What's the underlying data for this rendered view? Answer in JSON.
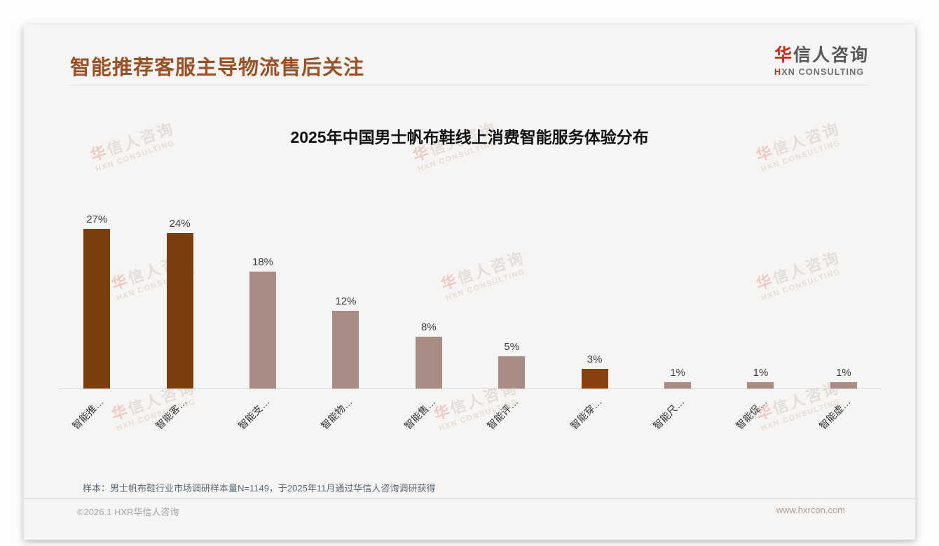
{
  "header": {
    "title": "智能推荐客服主导物流售后关注"
  },
  "logo": {
    "cn_first": "华",
    "cn_rest": "信人咨询",
    "en_first": "H",
    "en_rest": "XN CONSULTING"
  },
  "colors": {
    "title_brown": "#9a5126",
    "highlight_bar": "#7b3e11",
    "highlight_bar_small": "#8a400e",
    "normal_bar": "#a78d84",
    "logo_red": "#c8281f"
  },
  "chart_data": {
    "type": "bar",
    "title": "2025年中国男士帆布鞋线上消费智能服务体验分布",
    "categories": [
      "智能推…",
      "智能客…",
      "智能支…",
      "智能物…",
      "智能售…",
      "智能评…",
      "智能穿…",
      "智能尺…",
      "智能促…",
      "智能虚…"
    ],
    "values": [
      27,
      24,
      18,
      12,
      8,
      5,
      3,
      1,
      1,
      1
    ],
    "value_labels": [
      "27%",
      "24%",
      "18%",
      "12%",
      "8%",
      "5%",
      "3%",
      "1%",
      "1%",
      "1%"
    ],
    "bar_colors": [
      "#7b3e11",
      "#7b3e11",
      "#a78d84",
      "#a78d84",
      "#a78d84",
      "#a78d84",
      "#8a400e",
      "#a78d84",
      "#a78d84",
      "#a78d84"
    ],
    "ylim": [
      0,
      30
    ],
    "grid": false,
    "legend": null,
    "xlabel": "",
    "ylabel": ""
  },
  "note": {
    "text": "样本：男士帆布鞋行业市场调研样本量N=1149，于2025年11月通过华信人咨询调研获得"
  },
  "footer": {
    "left": "©2026.1 HXR华信人咨询",
    "right": "www.hxrcon.com"
  },
  "watermark": {
    "cn_first": "华",
    "cn_rest": "信人咨询",
    "en": "HXN CONSULTING"
  }
}
